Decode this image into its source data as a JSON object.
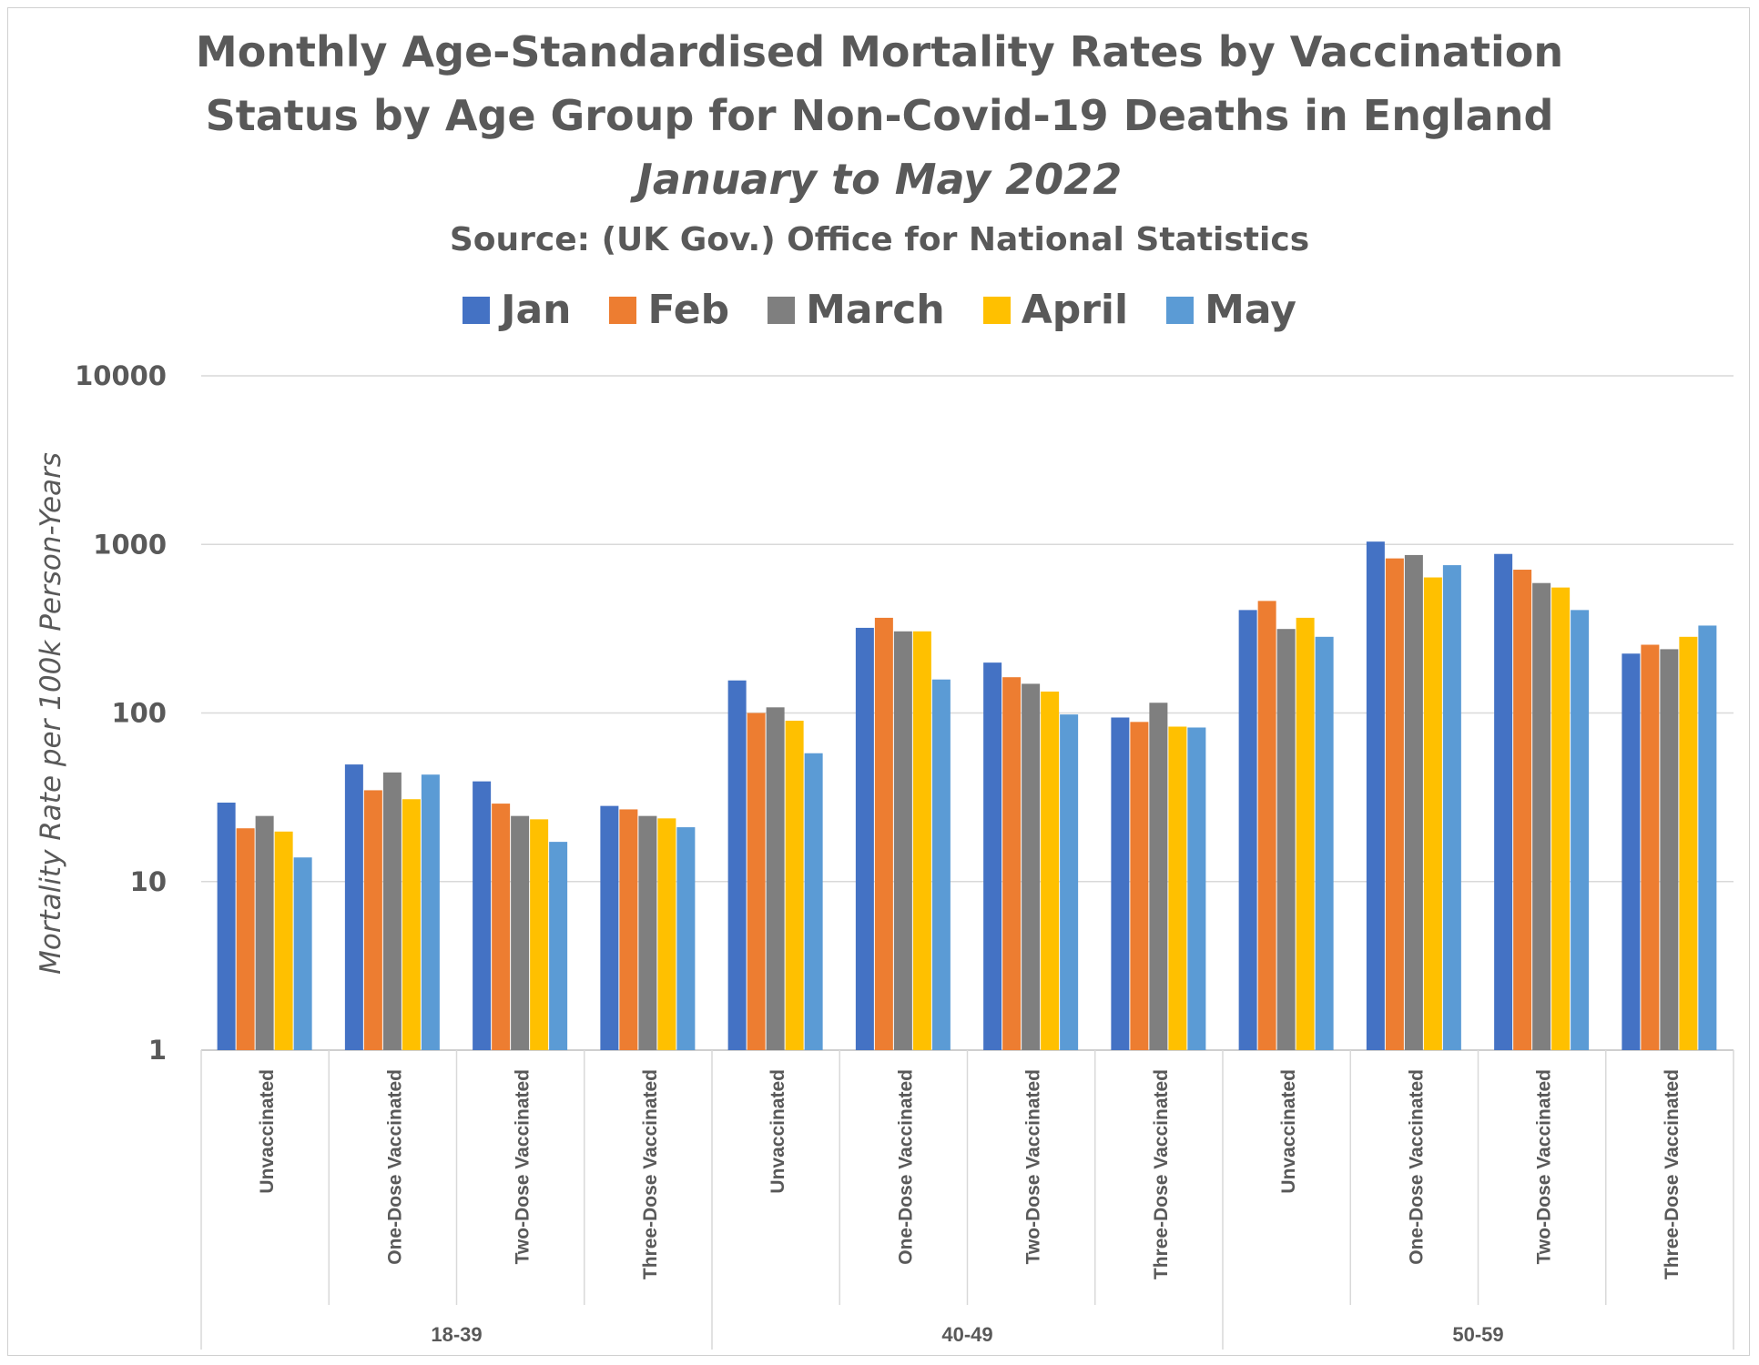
{
  "title_line1": "Monthly Age-Standardised Mortality Rates by Vaccination",
  "title_line2": "Status by Age Group for Non-Covid-19 Deaths in England",
  "subtitle": "January to May 2022",
  "source": "Source: (UK Gov.) Office for National Statistics",
  "chart_data": {
    "type": "bar",
    "title": "Monthly Age-Standardised Mortality Rates by Vaccination Status by Age Group for Non-Covid-19 Deaths in England",
    "subtitle": "January to May 2022",
    "ylabel": "Mortality Rate per 100k Person-Years",
    "xlabel": "",
    "yscale": "log",
    "ylim": [
      1,
      10000
    ],
    "yticks": [
      "1",
      "10",
      "100",
      "1000",
      "10000"
    ],
    "grid": true,
    "legend_position": "top",
    "groups": [
      "18-39",
      "40-49",
      "50-59"
    ],
    "categories": [
      "Unvaccinated",
      "One-Dose Vaccinated",
      "Two-Dose Vaccinated",
      "Three-Dose Vaccinated",
      "Unvaccinated",
      "One-Dose Vaccinated",
      "Two-Dose Vaccinated",
      "Three-Dose Vaccinated",
      "Unvaccinated",
      "One-Dose Vaccinated",
      "Two-Dose Vaccinated",
      "Three-Dose Vaccinated"
    ],
    "series": [
      {
        "name": "Jan",
        "color": "#4472C4",
        "values": [
          29.4,
          49.5,
          39.3,
          28.1,
          156,
          320,
          199,
          94,
          408,
          1039,
          878,
          225
        ]
      },
      {
        "name": "Feb",
        "color": "#ED7D31",
        "values": [
          20.7,
          34.8,
          29,
          26.8,
          100,
          367,
          163,
          88.5,
          462,
          826,
          708,
          254
        ]
      },
      {
        "name": "March",
        "color": "#7F7F7F",
        "values": [
          24.5,
          44.4,
          24.5,
          24.5,
          108,
          305,
          149,
          115,
          315,
          865,
          590,
          239
        ]
      },
      {
        "name": "April",
        "color": "#FFC000",
        "values": [
          19.8,
          30.8,
          23.4,
          23.7,
          90,
          305,
          134,
          83,
          367,
          637,
          555,
          283
        ]
      },
      {
        "name": "May",
        "color": "#5B9BD5",
        "values": [
          13.9,
          43.1,
          17.2,
          21,
          57.7,
          158,
          98,
          82,
          283,
          753,
          408,
          330
        ]
      }
    ]
  }
}
